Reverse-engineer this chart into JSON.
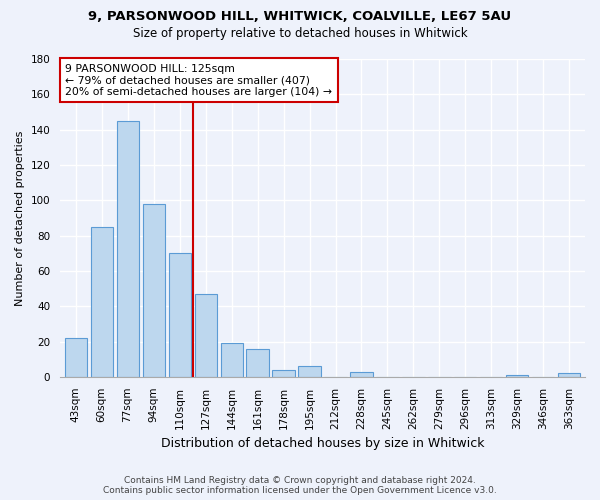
{
  "title_line1": "9, PARSONWOOD HILL, WHITWICK, COALVILLE, LE67 5AU",
  "title_line2": "Size of property relative to detached houses in Whitwick",
  "xlabel": "Distribution of detached houses by size in Whitwick",
  "ylabel": "Number of detached properties",
  "bin_labels": [
    "43sqm",
    "60sqm",
    "77sqm",
    "94sqm",
    "110sqm",
    "127sqm",
    "144sqm",
    "161sqm",
    "178sqm",
    "195sqm",
    "212sqm",
    "228sqm",
    "245sqm",
    "262sqm",
    "279sqm",
    "296sqm",
    "313sqm",
    "329sqm",
    "346sqm",
    "363sqm"
  ],
  "bar_values": [
    22,
    85,
    145,
    98,
    70,
    47,
    19,
    16,
    4,
    6,
    0,
    3,
    0,
    0,
    0,
    0,
    0,
    1,
    0,
    2
  ],
  "bar_color": "#bdd7ee",
  "bar_edge_color": "#5b9bd5",
  "vline_bin_index": 5,
  "vline_color": "#cc0000",
  "annotation_title": "9 PARSONWOOD HILL: 125sqm",
  "annotation_line1": "← 79% of detached houses are smaller (407)",
  "annotation_line2": "20% of semi-detached houses are larger (104) →",
  "annotation_box_facecolor": "#ffffff",
  "annotation_box_edgecolor": "#cc0000",
  "ylim": [
    0,
    180
  ],
  "yticks": [
    0,
    20,
    40,
    60,
    80,
    100,
    120,
    140,
    160,
    180
  ],
  "footer_line1": "Contains HM Land Registry data © Crown copyright and database right 2024.",
  "footer_line2": "Contains public sector information licensed under the Open Government Licence v3.0.",
  "background_color": "#eef2fb",
  "grid_color": "#ffffff",
  "title_fontsize": 9.5,
  "subtitle_fontsize": 8.5,
  "ylabel_fontsize": 8,
  "xlabel_fontsize": 9,
  "tick_fontsize": 7.5,
  "footer_fontsize": 6.5
}
